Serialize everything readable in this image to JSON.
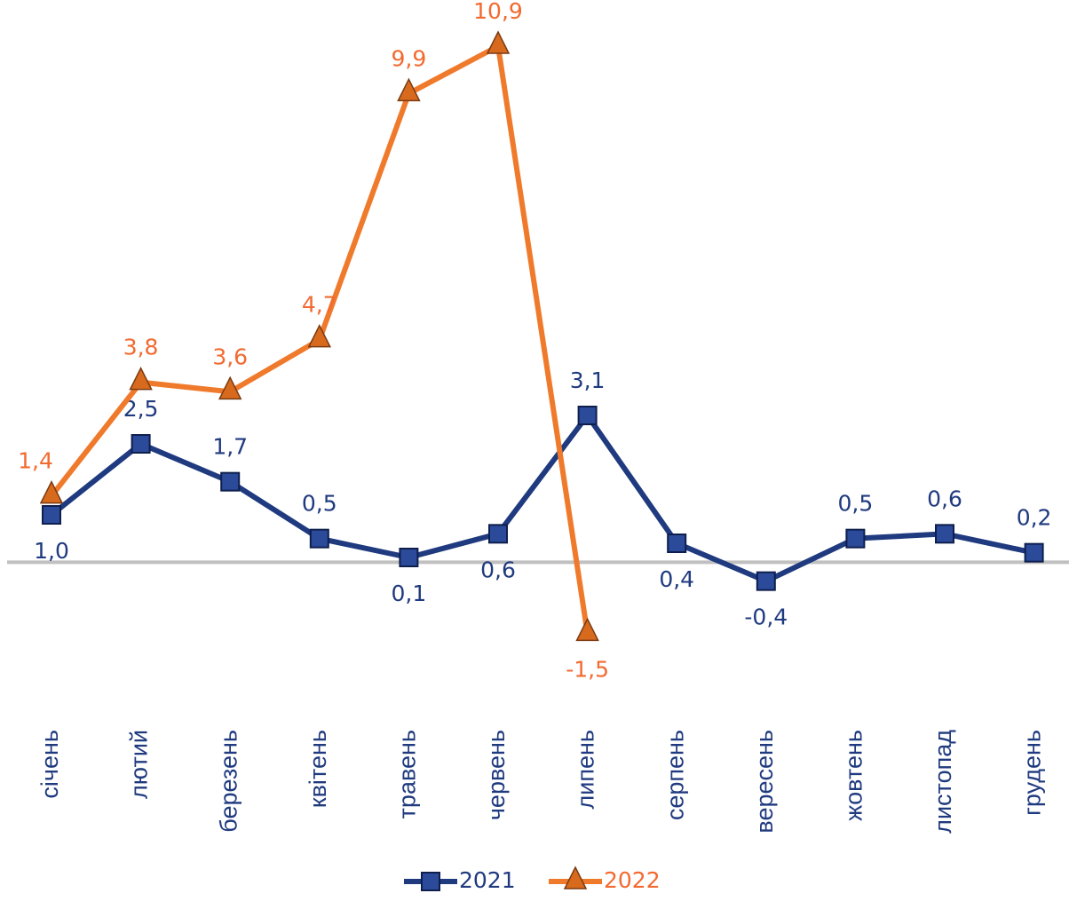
{
  "chart_data": {
    "type": "line",
    "categories": [
      "січень",
      "лютий",
      "березень",
      "квітень",
      "травень",
      "червень",
      "липень",
      "серпень",
      "вересень",
      "жовтень",
      "листопад",
      "грудень"
    ],
    "series": [
      {
        "name": "2021",
        "color": "#1f3a7f",
        "values": [
          1.0,
          2.5,
          1.7,
          0.5,
          0.1,
          0.6,
          3.1,
          0.4,
          -0.4,
          0.5,
          0.6,
          0.2
        ],
        "value_labels": [
          "1,0",
          "2,5",
          "1,7",
          "0,5",
          "0,1",
          "0,6",
          "3,1",
          "0,4",
          "-0,4",
          "0,5",
          "0,6",
          "0,2"
        ]
      },
      {
        "name": "2022",
        "color": "#f07a2c",
        "values": [
          1.4,
          3.8,
          3.6,
          4.7,
          9.9,
          10.9,
          -1.5,
          null,
          null,
          null,
          null,
          null
        ],
        "value_labels": [
          "1,4",
          "3,8",
          "3,6",
          "4,7",
          "9,9",
          "10,9",
          "-1,5",
          null,
          null,
          null,
          null,
          null
        ]
      }
    ],
    "ylim": [
      -2,
      11.5
    ]
  }
}
